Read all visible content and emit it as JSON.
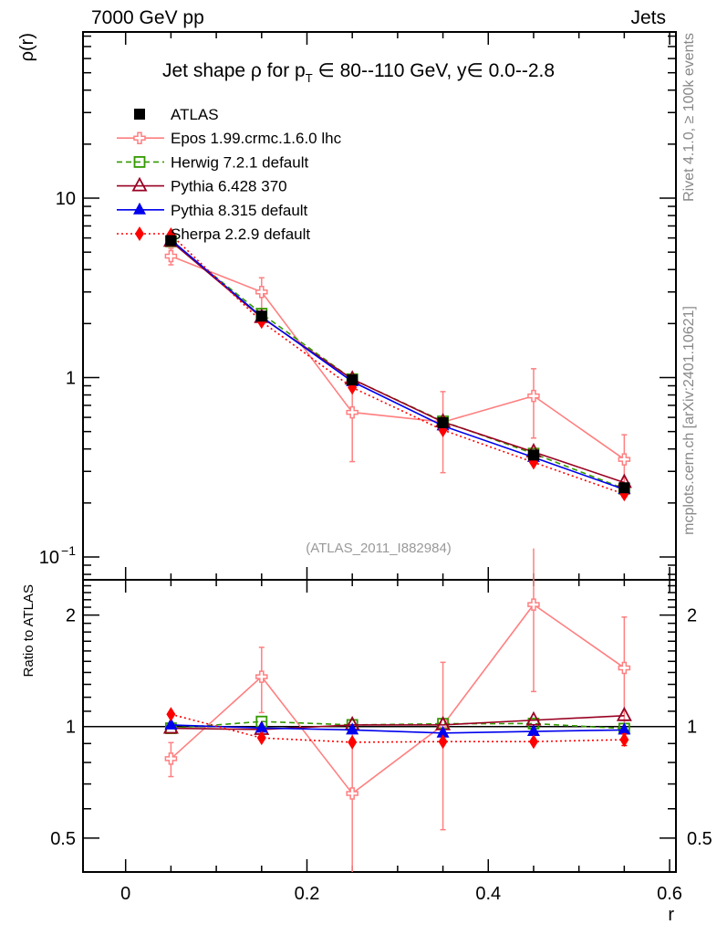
{
  "header": {
    "left": "7000 GeV pp",
    "right": "Jets"
  },
  "side": {
    "rivet": "Rivet 4.1.0, ≥ 100k events",
    "mcplots": "mcplots.cern.ch [arXiv:2401.10621]"
  },
  "chart_data": {
    "type": "line",
    "title_parts": [
      "Jet shape ρ for p",
      "T",
      " ∈ 80--110 GeV, y∈ 0.0--2.8"
    ],
    "watermark": "(ATLAS_2011_I882984)",
    "xlabel": "r",
    "ylabel": "ρ(r)",
    "ratio_ylabel": "Ratio to ATLAS",
    "xlim": [
      -0.047,
      0.607
    ],
    "ylim": [
      0.0746,
      84.4
    ],
    "ratio_ylim": [
      0.405,
      2.49
    ],
    "yscale": "log",
    "x_ticks": [
      {
        "v": 0,
        "label": "0"
      },
      {
        "v": 0.2,
        "label": "0.2"
      },
      {
        "v": 0.4,
        "label": "0.4"
      },
      {
        "v": 0.6,
        "label": "0.6"
      }
    ],
    "y_ticks": [
      {
        "v": 10,
        "label": "10"
      },
      {
        "v": 1,
        "label": "1"
      },
      {
        "v": 0.1,
        "label": "10",
        "sup": "−1"
      }
    ],
    "ratio_ticks": [
      {
        "v": 2,
        "label": "2"
      },
      {
        "v": 1,
        "label": "1"
      },
      {
        "v": 0.5,
        "label": "0.5"
      }
    ],
    "legend_position": "top-left",
    "x": [
      0.05,
      0.15,
      0.25,
      0.35,
      0.45,
      0.55
    ],
    "reference": "ATLAS",
    "series": [
      {
        "name": "ATLAS",
        "key": "atlas",
        "color": "#000000",
        "marker": "square-filled",
        "line": "none",
        "values": [
          5.8,
          2.2,
          0.97,
          0.56,
          0.37,
          0.243
        ],
        "errors": [
          0,
          0,
          0,
          0,
          0,
          0
        ]
      },
      {
        "name": "Epos 1.99.crmc.1.6.0 lhc",
        "key": "epos",
        "color": "#ff7f80",
        "marker": "cross-open",
        "line": "solid",
        "values": [
          4.75,
          3.0,
          0.64,
          0.565,
          0.79,
          0.35
        ],
        "errors": [
          0.5,
          0.6,
          0.3,
          0.27,
          0.33,
          0.13
        ]
      },
      {
        "name": "Herwig 7.2.1 default",
        "key": "herwig",
        "color": "#339900",
        "marker": "square-open",
        "line": "dashed",
        "values": [
          5.74,
          2.27,
          0.98,
          0.57,
          0.377,
          0.24
        ],
        "errors": [
          0,
          0,
          0,
          0,
          0,
          0
        ]
      },
      {
        "name": "Pythia 6.428 370",
        "key": "pythia6",
        "color": "#990022",
        "marker": "triangle-open",
        "line": "solid",
        "values": [
          5.74,
          2.16,
          0.98,
          0.566,
          0.385,
          0.26
        ],
        "errors": [
          0,
          0,
          0,
          0,
          0,
          0
        ]
      },
      {
        "name": "Pythia 8.315 default",
        "key": "pythia8",
        "color": "#0000ee",
        "marker": "triangle-filled",
        "line": "solid",
        "values": [
          5.86,
          2.18,
          0.95,
          0.538,
          0.359,
          0.238
        ],
        "errors": [
          0,
          0,
          0,
          0,
          0,
          0
        ]
      },
      {
        "name": "Sherpa 2.2.9 default",
        "key": "sherpa",
        "color": "#ff0000",
        "marker": "diamond-filled",
        "line": "dotted",
        "values": [
          6.26,
          2.05,
          0.88,
          0.51,
          0.337,
          0.224
        ],
        "errors": [
          0,
          0,
          0,
          0,
          0,
          0.008
        ]
      }
    ]
  }
}
